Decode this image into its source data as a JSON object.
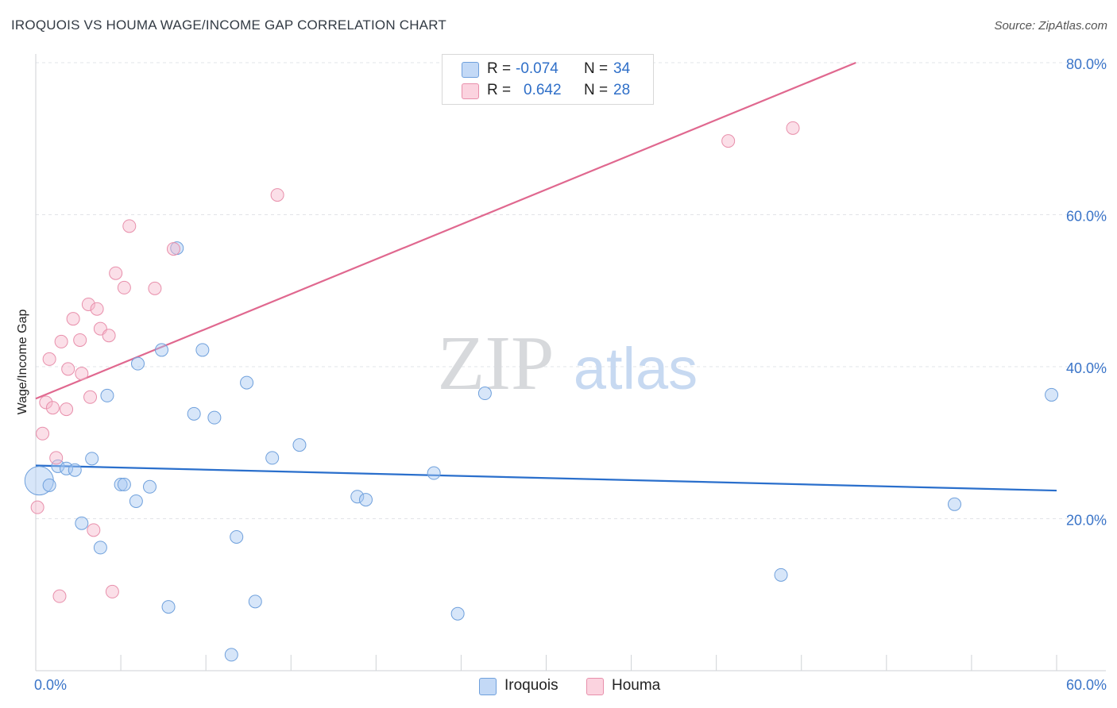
{
  "header": {
    "title": "IROQUOIS VS HOUMA WAGE/INCOME GAP CORRELATION CHART",
    "source": "Source: ZipAtlas.com"
  },
  "watermark": {
    "zip": "ZIP",
    "atlas": "atlas"
  },
  "legend": {
    "rows": [
      {
        "r_label": "R =",
        "r_value": "-0.074",
        "n_label": "N =",
        "n_value": "34",
        "color": "#a7c8f2"
      },
      {
        "r_label": "R =",
        "r_value": "0.642",
        "n_label": "N =",
        "n_value": "28",
        "color": "#f7b9cb"
      }
    ]
  },
  "bottom_legend": {
    "items": [
      {
        "label": "Iroquois",
        "color": "#a7c8f2"
      },
      {
        "label": "Houma",
        "color": "#f7b9cb"
      }
    ]
  },
  "chart_data": {
    "type": "scatter",
    "title": "IROQUOIS VS HOUMA WAGE/INCOME GAP CORRELATION CHART",
    "xlabel": "",
    "ylabel": "Wage/Income Gap",
    "xlim": [
      0,
      60
    ],
    "ylim": [
      0,
      80
    ],
    "x_tick_labels": [
      "0.0%",
      "60.0%"
    ],
    "y_tick_labels": [
      "20.0%",
      "40.0%",
      "60.0%",
      "80.0%"
    ],
    "y_ticks": [
      20,
      40,
      60,
      80
    ],
    "grid": true,
    "series": [
      {
        "name": "Iroquois",
        "color": "#a7c8f2",
        "stroke": "#6fa0dc",
        "trend_color": "#2a6fcc",
        "trend": {
          "x": [
            0,
            60
          ],
          "y": [
            27.0,
            23.7
          ]
        },
        "points": [
          {
            "x": 0.2,
            "y": 25.0,
            "big": true
          },
          {
            "x": 0.8,
            "y": 24.4
          },
          {
            "x": 1.3,
            "y": 26.9
          },
          {
            "x": 1.8,
            "y": 26.6
          },
          {
            "x": 2.3,
            "y": 26.4
          },
          {
            "x": 2.7,
            "y": 19.4
          },
          {
            "x": 3.3,
            "y": 27.9
          },
          {
            "x": 3.8,
            "y": 16.2
          },
          {
            "x": 4.2,
            "y": 36.2
          },
          {
            "x": 5.0,
            "y": 24.5
          },
          {
            "x": 5.2,
            "y": 24.5
          },
          {
            "x": 5.9,
            "y": 22.3
          },
          {
            "x": 6.0,
            "y": 40.4
          },
          {
            "x": 6.7,
            "y": 24.2
          },
          {
            "x": 7.4,
            "y": 42.2
          },
          {
            "x": 7.8,
            "y": 8.4
          },
          {
            "x": 8.3,
            "y": 55.6
          },
          {
            "x": 9.3,
            "y": 33.8
          },
          {
            "x": 9.8,
            "y": 42.2
          },
          {
            "x": 10.5,
            "y": 33.3
          },
          {
            "x": 11.5,
            "y": 2.1
          },
          {
            "x": 11.8,
            "y": 17.6
          },
          {
            "x": 12.4,
            "y": 37.9
          },
          {
            "x": 12.9,
            "y": 9.1
          },
          {
            "x": 13.9,
            "y": 28.0
          },
          {
            "x": 15.5,
            "y": 29.7
          },
          {
            "x": 18.9,
            "y": 22.9
          },
          {
            "x": 19.4,
            "y": 22.5
          },
          {
            "x": 23.4,
            "y": 26.0
          },
          {
            "x": 24.8,
            "y": 7.5
          },
          {
            "x": 26.4,
            "y": 36.5
          },
          {
            "x": 43.8,
            "y": 12.6
          },
          {
            "x": 54.0,
            "y": 21.9
          },
          {
            "x": 59.7,
            "y": 36.3
          }
        ]
      },
      {
        "name": "Houma",
        "color": "#f7b9cb",
        "stroke": "#e88fab",
        "trend_color": "#e0688f",
        "trend": {
          "x": [
            0,
            48.2
          ],
          "y": [
            35.8,
            80.0
          ]
        },
        "points": [
          {
            "x": 0.1,
            "y": 21.5
          },
          {
            "x": 0.4,
            "y": 31.2
          },
          {
            "x": 0.6,
            "y": 35.3
          },
          {
            "x": 0.8,
            "y": 41.0
          },
          {
            "x": 1.0,
            "y": 34.6
          },
          {
            "x": 1.2,
            "y": 28.0
          },
          {
            "x": 1.4,
            "y": 9.8
          },
          {
            "x": 1.5,
            "y": 43.3
          },
          {
            "x": 1.8,
            "y": 34.4
          },
          {
            "x": 1.9,
            "y": 39.7
          },
          {
            "x": 2.2,
            "y": 46.3
          },
          {
            "x": 2.6,
            "y": 43.5
          },
          {
            "x": 2.7,
            "y": 39.1
          },
          {
            "x": 3.1,
            "y": 48.2
          },
          {
            "x": 3.2,
            "y": 36.0
          },
          {
            "x": 3.4,
            "y": 18.5
          },
          {
            "x": 3.6,
            "y": 47.6
          },
          {
            "x": 3.8,
            "y": 45.0
          },
          {
            "x": 4.3,
            "y": 44.1
          },
          {
            "x": 4.5,
            "y": 10.4
          },
          {
            "x": 4.7,
            "y": 52.3
          },
          {
            "x": 5.2,
            "y": 50.4
          },
          {
            "x": 5.5,
            "y": 58.5
          },
          {
            "x": 7.0,
            "y": 50.3
          },
          {
            "x": 8.1,
            "y": 55.5
          },
          {
            "x": 14.2,
            "y": 62.6
          },
          {
            "x": 40.7,
            "y": 69.7
          },
          {
            "x": 44.5,
            "y": 71.4
          }
        ]
      }
    ]
  }
}
